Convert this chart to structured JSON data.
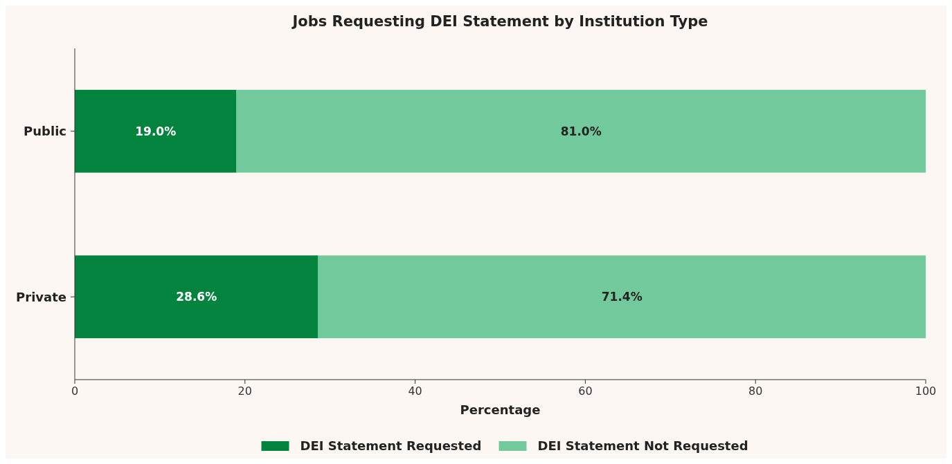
{
  "chart_data": {
    "type": "bar",
    "title": "Jobs Requesting DEI Statement by Institution Type",
    "xlabel": "Percentage",
    "orientation": "horizontal",
    "stacked": true,
    "categories": [
      "Public",
      "Private"
    ],
    "series": [
      {
        "name": "DEI Statement Requested",
        "color": "#04833f",
        "values": [
          19.0,
          28.6
        ],
        "value_labels": [
          "19.0%",
          "28.6%"
        ]
      },
      {
        "name": "DEI Statement Not Requested",
        "color": "#72c99b",
        "values": [
          81.0,
          71.4
        ],
        "value_labels": [
          "81.0%",
          "71.4%"
        ]
      }
    ],
    "xlim": [
      0,
      100
    ],
    "xticks": [
      0,
      20,
      40,
      60,
      80,
      100
    ],
    "legend": "bottom",
    "grid": false
  }
}
